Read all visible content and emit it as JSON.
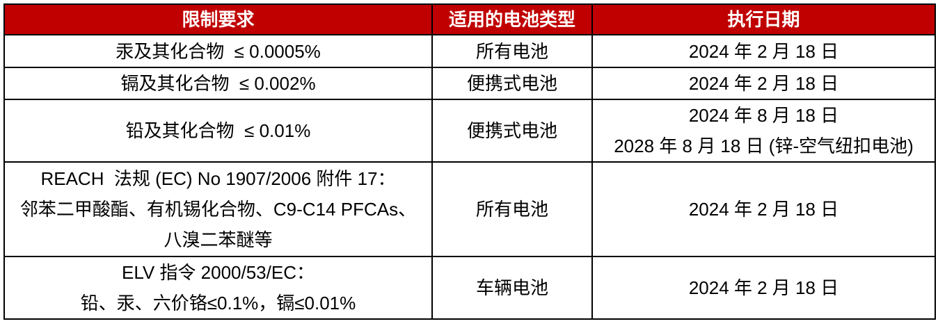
{
  "table": {
    "colors": {
      "header_background": "#C00000",
      "header_text": "#FFFFFF",
      "border": "#000000",
      "body_text": "#000000"
    },
    "header": {
      "requirement": "限制要求",
      "battery_type": "适用的电池类型",
      "date": "执行日期"
    },
    "rows": [
      {
        "requirement": [
          "汞及其化合物  ≤ 0.0005%"
        ],
        "battery_type": "所有电池",
        "date": [
          "2024 年 2 月 18 日"
        ]
      },
      {
        "requirement": [
          "镉及其化合物  ≤ 0.002%"
        ],
        "battery_type": "便携式电池",
        "date": [
          "2024 年 2 月 18 日"
        ]
      },
      {
        "requirement": [
          "铅及其化合物  ≤ 0.01%"
        ],
        "battery_type": "便携式电池",
        "date": [
          "2024 年 8 月 18 日",
          "2028 年 8 月 18 日 (锌-空气纽扣电池)"
        ]
      },
      {
        "requirement": [
          "REACH  法规 (EC) No 1907/2006 附件 17：",
          "邻苯二甲酸酯、有机锡化合物、C9-C14 PFCAs、",
          "八溴二苯醚等"
        ],
        "battery_type": "所有电池",
        "date": [
          "2024 年 2 月 18 日"
        ]
      },
      {
        "requirement": [
          "ELV 指令 2000/53/EC：",
          "铅、汞、六价铬≤0.1%，镉≤0.01%"
        ],
        "battery_type": "车辆电池",
        "date": [
          "2024 年 2 月 18 日"
        ]
      }
    ]
  }
}
